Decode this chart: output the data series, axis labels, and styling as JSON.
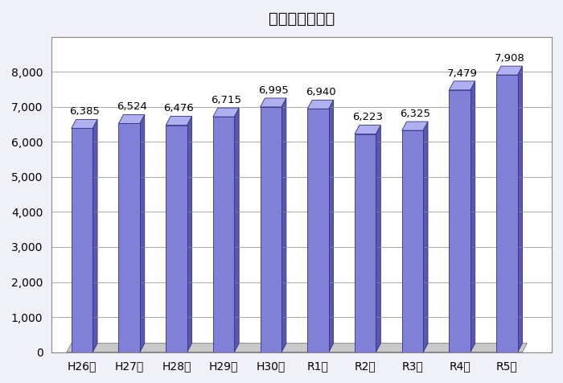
{
  "title": "救急件数の推移",
  "categories": [
    "H26年",
    "H27年",
    "H28年",
    "H29年",
    "H30年",
    "R1年",
    "R2年",
    "R3年",
    "R4年",
    "R5年"
  ],
  "values": [
    6385,
    6524,
    6476,
    6715,
    6995,
    6940,
    6223,
    6325,
    7479,
    7908
  ],
  "ylim": [
    0,
    9000
  ],
  "yticks": [
    0,
    1000,
    2000,
    3000,
    4000,
    5000,
    6000,
    7000,
    8000
  ],
  "bar_face_color": "#8080D8",
  "bar_edge_color": "#303080",
  "bar_side_color": "#5858B0",
  "bar_top_color": "#B0B0F0",
  "fig_bg_color": "#F0F0F8",
  "plot_bg_color": "#FFFFFF",
  "wall_bg_color": "#C8C8C8",
  "grid_color": "#888888",
  "title_fontsize": 14,
  "tick_fontsize": 10,
  "value_fontsize": 9.5,
  "bar_width": 0.45,
  "ox": 0.1,
  "oy_ratio": 0.028
}
